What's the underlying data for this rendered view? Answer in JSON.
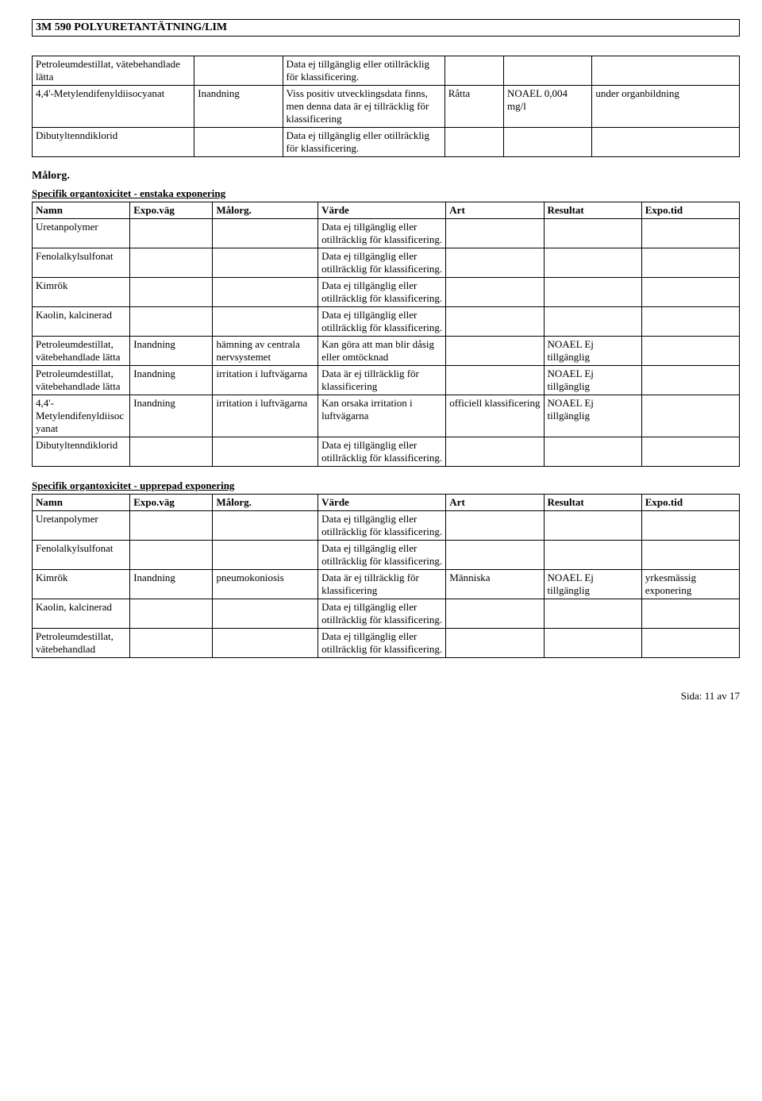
{
  "doc_title": "3M 590 POLYURETANTÄTNING/LIM",
  "pre_table": {
    "rows": [
      {
        "c0": "Petroleumdestillat, vätebehandlade lätta",
        "c1": "",
        "c2": "Data ej tillgänglig eller otillräcklig för klassificering.",
        "c3": "",
        "c4": "",
        "c5": ""
      },
      {
        "c0": "4,4'-Metylendifenyldiisocyanat",
        "c1": "Inandning",
        "c2": "Viss positiv utvecklingsdata finns, men denna data är ej tillräcklig för klassificering",
        "c3": "Råtta",
        "c4": "NOAEL 0,004 mg/l",
        "c5": "under organbildning"
      },
      {
        "c0": "Dibutyltenndiklorid",
        "c1": "",
        "c2": "Data ej tillgänglig eller otillräcklig för klassificering.",
        "c3": "",
        "c4": "",
        "c5": ""
      }
    ]
  },
  "malorg_heading": "Målorg.",
  "single_exposure": {
    "title": "Specifik organtoxicitet - enstaka exponering",
    "headers": {
      "namn": "Namn",
      "expovag": "Expo.väg",
      "malorg": "Målorg.",
      "varde": "Värde",
      "art": "Art",
      "resultat": "Resultat",
      "expotid": "Expo.tid"
    },
    "rows": [
      {
        "n": "Uretanpolymer",
        "ev": "",
        "mo": "",
        "v": "Data ej tillgänglig eller otillräcklig för klassificering.",
        "a": "",
        "r": "",
        "et": ""
      },
      {
        "n": "Fenolalkylsulfonat",
        "ev": "",
        "mo": "",
        "v": "Data ej tillgänglig eller otillräcklig för klassificering.",
        "a": "",
        "r": "",
        "et": ""
      },
      {
        "n": "Kimrök",
        "ev": "",
        "mo": "",
        "v": "Data ej tillgänglig eller otillräcklig för klassificering.",
        "a": "",
        "r": "",
        "et": ""
      },
      {
        "n": "Kaolin, kalcinerad",
        "ev": "",
        "mo": "",
        "v": "Data ej tillgänglig eller otillräcklig för klassificering.",
        "a": "",
        "r": "",
        "et": ""
      },
      {
        "n": "Petroleumdestillat, vätebehandlade lätta",
        "ev": "Inandning",
        "mo": "hämning av centrala nervsystemet",
        "v": "Kan göra att man blir dåsig eller omtöcknad",
        "a": "",
        "r": "NOAEL Ej tillgänglig",
        "et": ""
      },
      {
        "n": "Petroleumdestillat, vätebehandlade lätta",
        "ev": "Inandning",
        "mo": "irritation i luftvägarna",
        "v": "Data är ej tillräcklig för klassificering",
        "a": "",
        "r": "NOAEL Ej tillgänglig",
        "et": ""
      },
      {
        "n": "4,4'-Metylendifenyldiisocyanat",
        "ev": "Inandning",
        "mo": "irritation i luftvägarna",
        "v": "Kan orsaka irritation i luftvägarna",
        "a": "officiell klassificering",
        "r": "NOAEL Ej tillgänglig",
        "et": ""
      },
      {
        "n": "Dibutyltenndiklorid",
        "ev": "",
        "mo": "",
        "v": "Data ej tillgänglig eller otillräcklig för klassificering.",
        "a": "",
        "r": "",
        "et": ""
      }
    ]
  },
  "repeated_exposure": {
    "title": "Specifik organtoxicitet - upprepad exponering",
    "headers": {
      "namn": "Namn",
      "expovag": "Expo.väg",
      "malorg": "Målorg.",
      "varde": "Värde",
      "art": "Art",
      "resultat": "Resultat",
      "expotid": "Expo.tid"
    },
    "rows": [
      {
        "n": "Uretanpolymer",
        "ev": "",
        "mo": "",
        "v": "Data ej tillgänglig eller otillräcklig för klassificering.",
        "a": "",
        "r": "",
        "et": ""
      },
      {
        "n": "Fenolalkylsulfonat",
        "ev": "",
        "mo": "",
        "v": "Data ej tillgänglig eller otillräcklig för klassificering.",
        "a": "",
        "r": "",
        "et": ""
      },
      {
        "n": "Kimrök",
        "ev": "Inandning",
        "mo": "pneumokoniosis",
        "v": "Data är ej tillräcklig för klassificering",
        "a": "Människa",
        "r": "NOAEL Ej tillgänglig",
        "et": "yrkesmässig exponering"
      },
      {
        "n": "Kaolin, kalcinerad",
        "ev": "",
        "mo": "",
        "v": "Data ej tillgänglig eller otillräcklig för klassificering.",
        "a": "",
        "r": "",
        "et": ""
      },
      {
        "n": "Petroleumdestillat, vätebehandlad",
        "ev": "",
        "mo": "",
        "v": "Data ej tillgänglig eller otillräcklig för klassificering.",
        "a": "",
        "r": "",
        "et": ""
      }
    ]
  },
  "footer": "Sida: 11 av  17"
}
